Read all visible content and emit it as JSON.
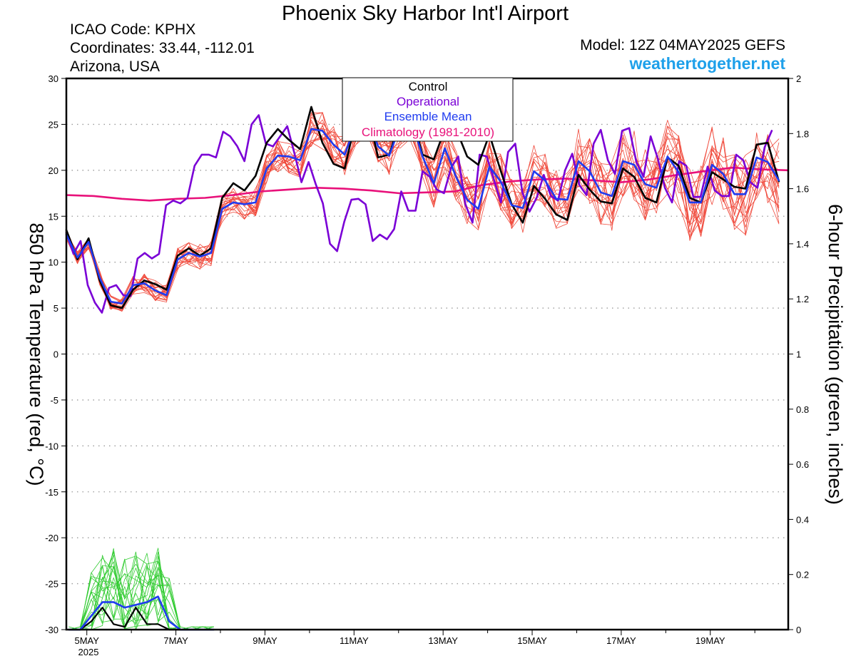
{
  "header": {
    "title": "Phoenix Sky Harbor Int'l Airport",
    "icao": "ICAO Code: KPHX",
    "coords": "Coordinates: 33.44, -112.01",
    "region": "Arizona, USA",
    "model": "Model: 12Z 04MAY2025 GEFS",
    "site": "weathertogether.net"
  },
  "colors": {
    "control": "#000000",
    "operational": "#7a00d6",
    "ensemble_mean": "#1f3bf0",
    "climatology": "#e8117a",
    "temp_members": "#f04a3c",
    "precip_members": "#33cc33",
    "site": "#1ea0ea"
  },
  "chart_data": {
    "type": "line",
    "x_unit": "days since 4 May 2025 12Z",
    "xlim": [
      0.04,
      16.25
    ],
    "x_ticks": [
      {
        "x": 0.5,
        "label": "5MAY"
      },
      {
        "x": 2.5,
        "label": "7MAY"
      },
      {
        "x": 4.5,
        "label": "9MAY"
      },
      {
        "x": 6.5,
        "label": "11MAY"
      },
      {
        "x": 8.5,
        "label": "13MAY"
      },
      {
        "x": 10.5,
        "label": "15MAY"
      },
      {
        "x": 12.5,
        "label": "17MAY"
      },
      {
        "x": 14.5,
        "label": "19MAY"
      }
    ],
    "x_year_label": "2025",
    "y_left": {
      "label": "850 hPa Temperature (red, °C)",
      "lim": [
        -30,
        30
      ],
      "ticks": [
        "30",
        "25",
        "20",
        "15",
        "10",
        "5",
        "0",
        "-5",
        "-10",
        "-15",
        "-20",
        "-25",
        "-30"
      ]
    },
    "y_right": {
      "label": "6-hour Precipitation (green, inches)",
      "lim": [
        0,
        2
      ],
      "ticks": [
        "2",
        "1.8",
        "1.6",
        "1.4",
        "1.2",
        "1",
        "0.8",
        "0.6",
        "0.4",
        "0.2",
        "0"
      ]
    },
    "legend": {
      "position": "top-center",
      "entries": [
        "Control",
        "Operational",
        "Ensemble Mean",
        "Climatology (1981-2010)"
      ]
    },
    "grid": "horizontal dotted",
    "series": [
      {
        "name": "Control",
        "axis": "left",
        "color": "#000000",
        "values": [
          13.5,
          10.3,
          12.6,
          8.0,
          5.3,
          5.0,
          7.0,
          8.0,
          7.6,
          7.0,
          10.7,
          11.5,
          10.7,
          11.5,
          17.0,
          18.6,
          17.8,
          19.4,
          23.0,
          24.5,
          23.3,
          22.3,
          26.9,
          23.0,
          20.7,
          20.2,
          25.5,
          26.8,
          21.4,
          21.7,
          25.5,
          26.1,
          21.7,
          21.2,
          24.5,
          24.5,
          21.5,
          20.6,
          23.9,
          20.0,
          16.3,
          14.3,
          18.3,
          16.9,
          15.2,
          14.6,
          19.5,
          17.9,
          16.6,
          16.4,
          20.2,
          19.3,
          17.0,
          16.5,
          21.4,
          20.5,
          17.0,
          16.5,
          19.8,
          19.0,
          18.2,
          18.0,
          22.8,
          23.0,
          18.8
        ]
      },
      {
        "name": "Operational",
        "axis": "left",
        "color": "#7a00d6",
        "values": [
          13.2,
          10.9,
          12.3,
          7.5,
          5.6,
          4.5,
          7.2,
          7.5,
          6.4,
          6.3,
          10.4,
          11.0,
          10.4,
          10.9,
          16.2,
          16.7,
          16.4,
          17.0,
          20.5,
          21.7,
          21.7,
          21.4,
          24.2,
          23.7,
          22.6,
          21.0,
          25.0,
          26.0,
          22.9,
          22.6,
          23.7,
          24.8,
          21.9,
          18.7,
          20.9,
          18.5,
          16.4,
          12.0,
          11.2,
          14.4,
          16.8,
          16.9,
          16.3,
          12.3,
          13.0,
          12.5,
          13.6,
          17.7,
          15.6,
          15.6,
          19.9,
          19.3,
          17.9,
          17.5,
          20.3,
          21.5,
          16.3,
          14.3,
          21.7,
          21.5,
          19.0,
          16.5,
          22.0,
          22.9,
          17.6,
          15.5,
          17.0,
          19.5,
          17.2,
          16.7,
          20.0,
          21.8,
          18.4,
          17.3,
          22.9,
          24.4,
          21.1,
          19.6,
          24.3,
          24.6,
          20.9,
          19.3,
          23.7,
          21.3,
          18.1,
          16.5,
          21.0,
          20.5,
          17.1,
          17.1,
          20.4,
          17.8,
          17.2,
          17.2,
          21.7,
          21.1,
          18.7,
          18.1,
          22.5,
          24.3
        ]
      },
      {
        "name": "Ensemble Mean",
        "axis": "left",
        "color": "#1f3bf0",
        "values": [
          13.0,
          10.5,
          12.2,
          8.3,
          5.7,
          5.5,
          7.5,
          7.7,
          6.9,
          6.4,
          10.3,
          11.0,
          10.6,
          11.0,
          15.8,
          16.5,
          16.3,
          16.5,
          20.2,
          21.6,
          21.5,
          21.1,
          24.5,
          24.3,
          22.8,
          21.7,
          25.0,
          26.0,
          22.6,
          21.6,
          24.9,
          25.5,
          21.5,
          18.6,
          22.4,
          19.3,
          16.8,
          15.8,
          20.4,
          18.8,
          16.2,
          15.9,
          19.9,
          18.9,
          16.9,
          16.8,
          21.0,
          19.9,
          17.6,
          17.2,
          21.0,
          20.6,
          18.5,
          18.1,
          21.5,
          19.8,
          16.5,
          16.5,
          20.6,
          19.6,
          17.4,
          17.4,
          21.4,
          20.9,
          18.9
        ]
      },
      {
        "name": "Climatology (1981-2010)",
        "axis": "left",
        "color": "#e8117a",
        "values": [
          17.3,
          17.2,
          16.9,
          16.7,
          16.9,
          17.0,
          17.3,
          17.7,
          17.9,
          18.1,
          18.0,
          17.8,
          17.5,
          17.6,
          17.7,
          18.4,
          18.8,
          19.0,
          19.1,
          18.9,
          18.7,
          19.0,
          19.5,
          19.9,
          20.3,
          20.1,
          20.0
        ]
      },
      {
        "name": "Ensemble Mean Precip",
        "axis": "right",
        "color": "#1f3bf0",
        "values": [
          0.0,
          0.0,
          0.05,
          0.1,
          0.1,
          0.08,
          0.09,
          0.1,
          0.12,
          0.03,
          0.0,
          0.0,
          0.0,
          0.0
        ]
      },
      {
        "name": "Control Precip",
        "axis": "right",
        "color": "#000000",
        "values": [
          0.0,
          0.0,
          0.03,
          0.08,
          0.02,
          0.01,
          0.08,
          0.02,
          0.02,
          0.0,
          0.0,
          0.0,
          0.0,
          0.0
        ]
      }
    ]
  }
}
